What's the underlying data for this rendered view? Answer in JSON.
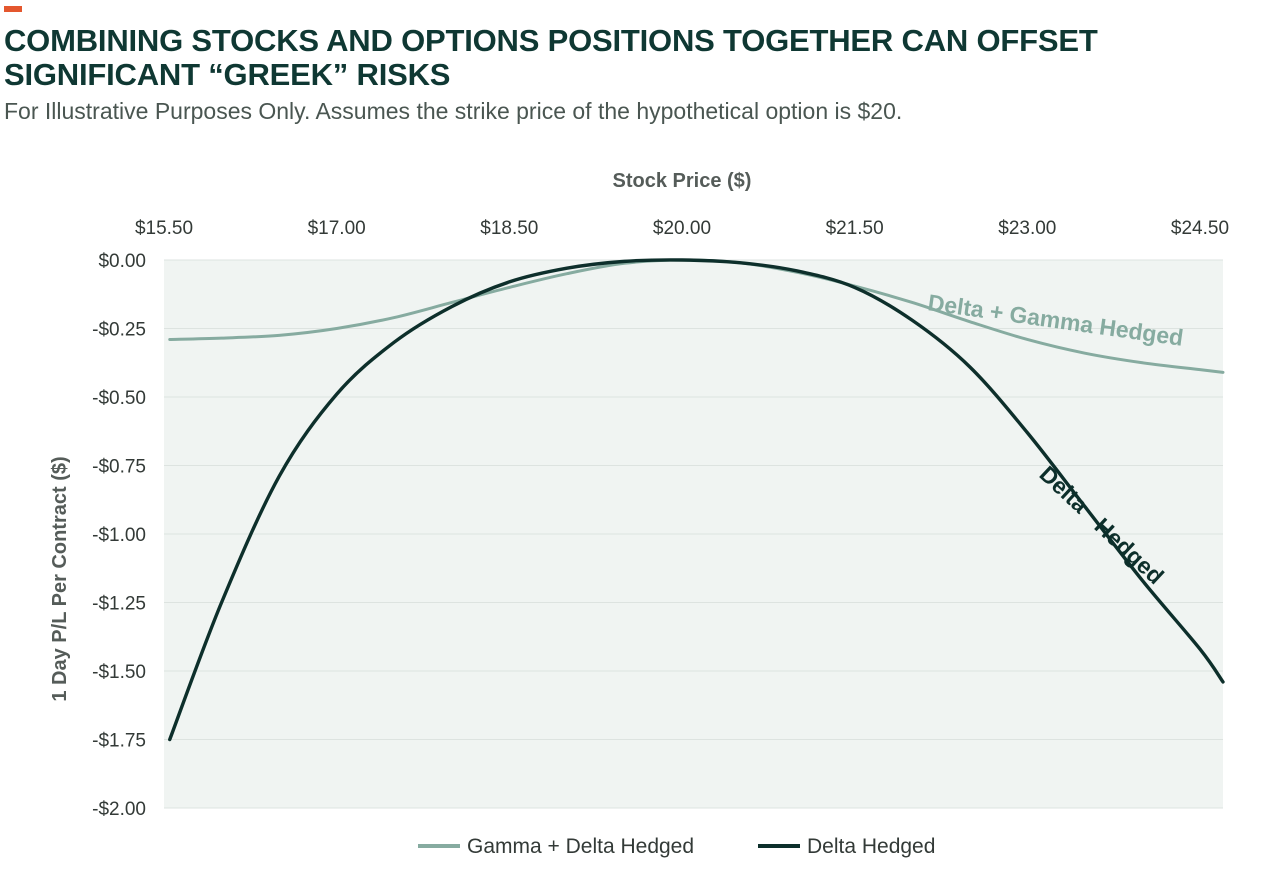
{
  "header": {
    "title_line1": "COMBINING STOCKS AND OPTIONS POSITIONS TOGETHER CAN OFFSET",
    "title_line2": "SIGNIFICANT “GREEK” RISKS",
    "subtitle": "For Illustrative Purposes Only. Assumes the strike price of the hypothetical option is $20.",
    "accent_color": "#e4572e"
  },
  "chart_data": {
    "type": "line",
    "xlabel": "Stock Price ($)",
    "ylabel": "1 Day P/L Per Contract ($)",
    "xlim": [
      15.5,
      24.7
    ],
    "ylim": [
      -2.0,
      0.0
    ],
    "x_axis_position": "top",
    "grid": "horizontal",
    "plot_background": "#f0f4f2",
    "x_ticks": [
      15.5,
      17.0,
      18.5,
      20.0,
      21.5,
      23.0,
      24.5
    ],
    "x_tick_labels": [
      "$15.50",
      "$17.00",
      "$18.50",
      "$20.00",
      "$21.50",
      "$23.00",
      "$24.50"
    ],
    "y_ticks": [
      0,
      -0.25,
      -0.5,
      -0.75,
      -1.0,
      -1.25,
      -1.5,
      -1.75,
      -2.0
    ],
    "y_tick_labels": [
      "$0.00",
      "-$0.25",
      "-$0.50",
      "-$0.75",
      "-$1.00",
      "-$1.25",
      "-$1.50",
      "-$1.75",
      "-$2.00"
    ],
    "legend_position": "bottom-center",
    "series": [
      {
        "name": "Gamma + Delta Hedged",
        "inline_label": "Delta + Gamma Hedged",
        "color": "#86aba0",
        "x": [
          15.55,
          16.0,
          16.5,
          17.0,
          17.5,
          18.0,
          18.5,
          19.0,
          19.5,
          20.0,
          20.5,
          21.0,
          21.5,
          22.0,
          22.5,
          23.0,
          23.5,
          24.0,
          24.5,
          24.7
        ],
        "y": [
          -0.29,
          -0.285,
          -0.275,
          -0.25,
          -0.21,
          -0.155,
          -0.1,
          -0.05,
          -0.012,
          0.0,
          -0.01,
          -0.045,
          -0.095,
          -0.155,
          -0.225,
          -0.29,
          -0.34,
          -0.375,
          -0.4,
          -0.41
        ]
      },
      {
        "name": "Delta Hedged",
        "inline_label_words": [
          "Delta",
          "Hedged"
        ],
        "color": "#0d2f2b",
        "x": [
          15.55,
          16.0,
          16.5,
          17.0,
          17.5,
          18.0,
          18.5,
          19.0,
          19.5,
          20.0,
          20.5,
          21.0,
          21.5,
          22.0,
          22.5,
          23.0,
          23.5,
          24.0,
          24.5,
          24.7
        ],
        "y": [
          -1.75,
          -1.25,
          -0.79,
          -0.49,
          -0.3,
          -0.17,
          -0.08,
          -0.03,
          -0.005,
          0.0,
          -0.01,
          -0.04,
          -0.1,
          -0.22,
          -0.39,
          -0.63,
          -0.9,
          -1.17,
          -1.42,
          -1.54
        ]
      }
    ]
  }
}
